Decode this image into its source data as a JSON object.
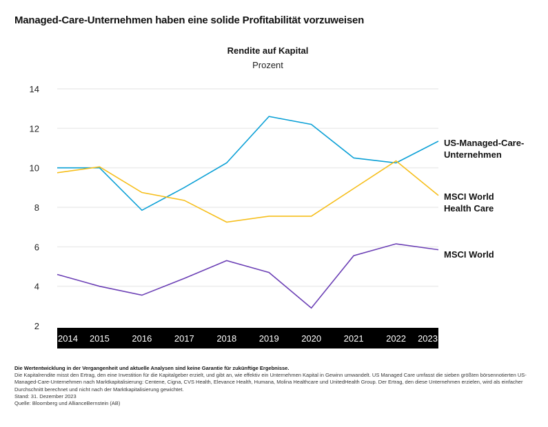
{
  "headline": "Managed-Care-Unternehmen haben eine solide Profitabilität vorzuweisen",
  "chart_data": {
    "type": "line",
    "title": "Rendite auf Kapital",
    "subtitle": "Prozent",
    "xlabel": "",
    "ylabel": "Prozent",
    "x": [
      "2014",
      "2015",
      "2016",
      "2017",
      "2018",
      "2019",
      "2020",
      "2021",
      "2022",
      "2023"
    ],
    "ylim": [
      2,
      14
    ],
    "yticks": [
      "14",
      "12",
      "10",
      "8",
      "6",
      "4",
      "2"
    ],
    "grid": true,
    "legend": "right, inline labels at line ends",
    "series": [
      {
        "name": "US-Managed-Care-Unternehmen",
        "label_lines": [
          "US-Managed-Care-",
          "Unternehmen"
        ],
        "color": "#0BA0D6",
        "values": [
          10.0,
          10.0,
          7.85,
          9.0,
          10.25,
          12.6,
          12.2,
          10.5,
          10.25,
          11.35
        ]
      },
      {
        "name": "MSCI World Health Care",
        "label_lines": [
          "MSCI World",
          "Health Care"
        ],
        "color": "#F6BE1A",
        "values": [
          9.75,
          10.05,
          8.75,
          8.35,
          7.25,
          7.55,
          7.55,
          8.95,
          10.35,
          8.6
        ]
      },
      {
        "name": "MSCI World",
        "label_lines": [
          "MSCI World"
        ],
        "color": "#6B3FB5",
        "values": [
          4.6,
          4.0,
          3.55,
          4.4,
          5.3,
          4.7,
          2.9,
          5.55,
          6.15,
          5.85
        ]
      }
    ]
  },
  "footnotes": {
    "disclaimer": "Die Wertentwicklung in der Vergangenheit und aktuelle Analysen sind keine Garantie für zukünftige Ergebnisse.",
    "definition": "Die Kapitalrendite misst den Ertrag, den eine Investition für die Kapitalgeber erzielt, und gibt an, wie effektiv ein Unternehmen Kapital in Gewinn umwandelt. US Managed Care umfasst die sieben größten börsennotierten US-Managed-Care-Unternehmen nach Marktkapitalisierung: Centene, Cigna, CVS Health, Elevance Health, Humana, Molina Healthcare und UnitedHealth Group. Der Ertrag, den diese Unternehmen erzielen, wird als einfacher Durchschnitt berechnet und nicht nach der Marktkapitalisierung gewichtet.",
    "date": "Stand: 31. Dezember 2023",
    "source": "Quelle: Bloomberg und AllianceBernstein (AB)"
  }
}
